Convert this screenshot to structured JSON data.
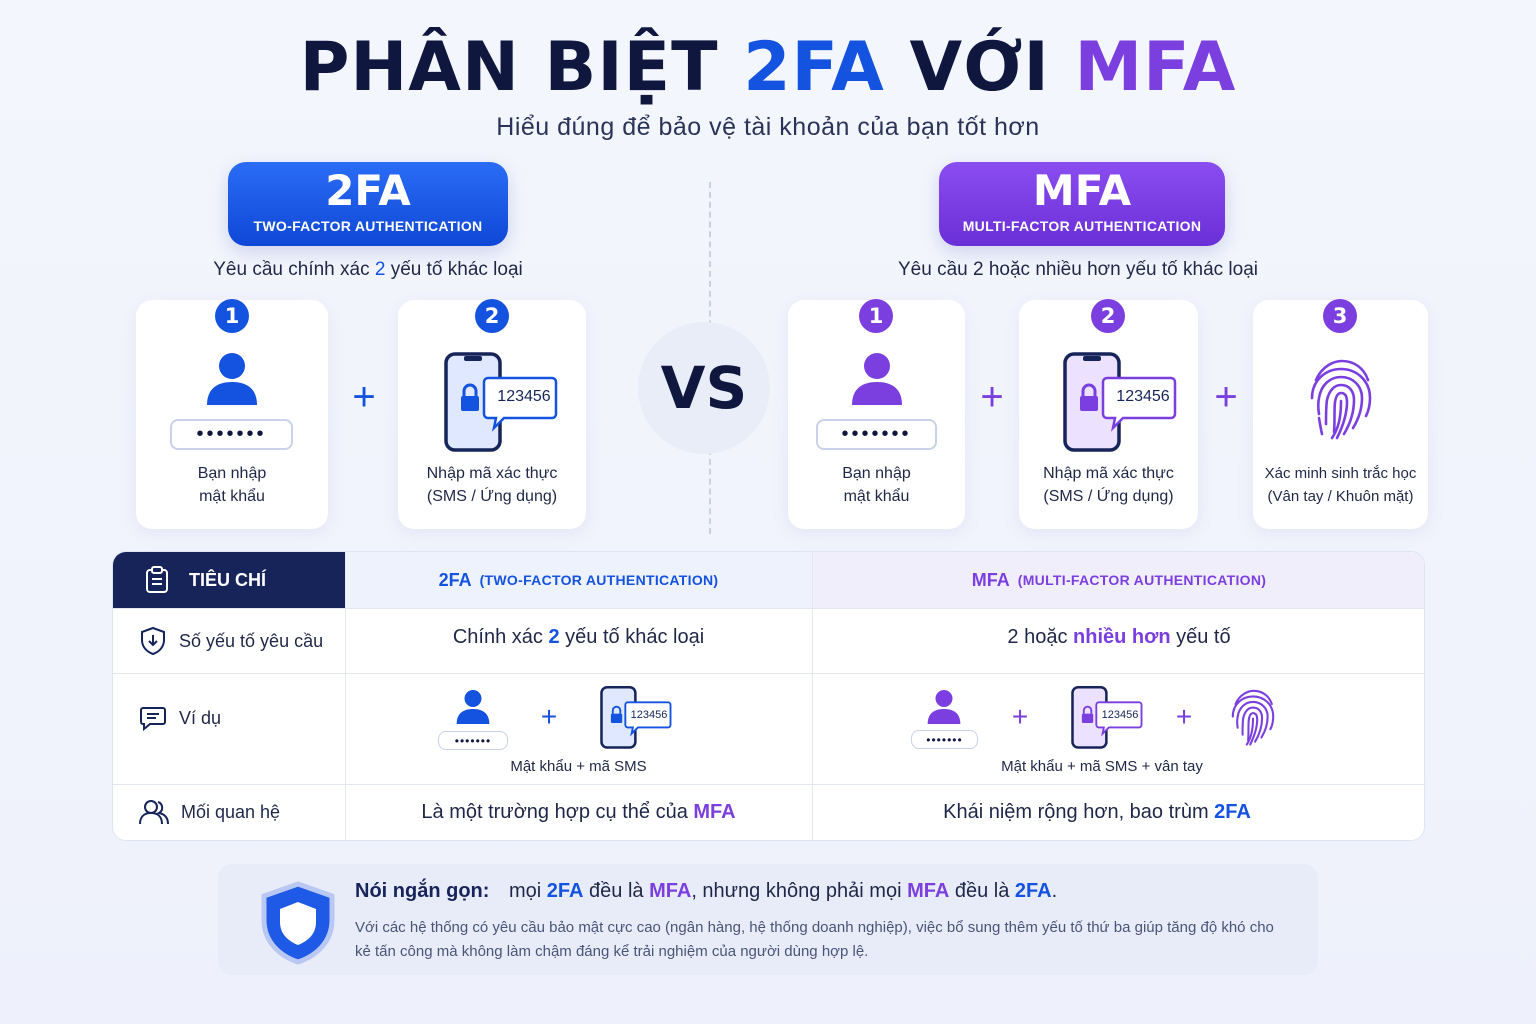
{
  "title": {
    "part1": "PHÂN BIỆT",
    "part2": "2FA",
    "part3": "VỚI",
    "part4": "MFA"
  },
  "subtitle": "Hiểu đúng để bảo vệ tài khoản của bạn tốt hơn",
  "left": {
    "badge_big": "2FA",
    "badge_small": "TWO-FACTOR AUTHENTICATION",
    "requirement_pre": "Yêu cầu chính xác",
    "requirement_num": "2",
    "requirement_post": "yếu tố khác loại",
    "cards": [
      {
        "num": "1",
        "line1": "Bạn nhập",
        "line2": "mật khẩu",
        "pw": "•••••••"
      },
      {
        "num": "2",
        "line1": "Nhập mã xác thực",
        "line2": "(SMS / Ứng dụng)",
        "code": "123456"
      }
    ],
    "plus": "+"
  },
  "vs": "VS",
  "right": {
    "badge_big": "MFA",
    "badge_small": "MULTI-FACTOR AUTHENTICATION",
    "requirement": "Yêu cầu 2 hoặc nhiều hơn yếu tố khác loại",
    "cards": [
      {
        "num": "1",
        "line1": "Bạn nhập",
        "line2": "mật khẩu",
        "pw": "•••••••"
      },
      {
        "num": "2",
        "line1": "Nhập mã xác thực",
        "line2": "(SMS / Ứng dụng)",
        "code": "123456"
      },
      {
        "num": "3",
        "line1": "Xác minh sinh trắc học",
        "line2": "(Vân tay / Khuôn mặt)"
      }
    ],
    "plus": "+"
  },
  "table": {
    "header_criteria": "TIÊU CHÍ",
    "header_2fa": "2FA",
    "header_2fa_sub": "(TWO-FACTOR AUTHENTICATION)",
    "header_mfa": "MFA",
    "header_mfa_sub": "(MULTI-FACTOR AUTHENTICATION)",
    "rows": {
      "factors": {
        "label": "Số yếu tố yêu cầu",
        "twofa_pre": "Chính xác",
        "twofa_num": "2",
        "twofa_post": "yếu tố khác loại",
        "mfa_pre": "2 hoặc",
        "mfa_hl": "nhiều hơn",
        "mfa_post": "yếu tố"
      },
      "example": {
        "label": "Ví dụ",
        "twofa_caption": "Mật khẩu + mã SMS",
        "mfa_caption": "Mật khẩu + mã SMS + vân tay",
        "code": "123456",
        "pw": "•••••••"
      },
      "relation": {
        "label": "Mối quan hệ",
        "twofa_pre": "Là một trường hợp cụ thể của",
        "twofa_hl": "MFA",
        "mfa_pre": "Khái niệm rộng hơn, bao trùm",
        "mfa_hl": "2FA"
      }
    }
  },
  "note": {
    "lead": "Nói ngắn gọn:",
    "t1": "mọi",
    "t2": "2FA",
    "t3": "đều là",
    "t4": "MFA",
    "t5": ", nhưng không phải mọi",
    "t6": "MFA",
    "t7": "đều là",
    "t8": "2FA",
    "t9": ".",
    "body": "Với các hệ thống có yêu cầu bảo mật cực cao (ngân hàng, hệ thống doanh nghiệp), việc bổ sung thêm yếu tố thứ ba giúp tăng độ khó cho kẻ tấn công mà không làm chậm đáng kể trải nghiệm của người dùng hợp lệ."
  },
  "colors": {
    "blue": "#1452e0",
    "purple": "#7b3fe0",
    "navy": "#16245a"
  }
}
